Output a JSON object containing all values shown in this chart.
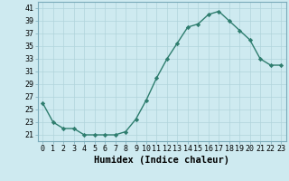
{
  "x": [
    0,
    1,
    2,
    3,
    4,
    5,
    6,
    7,
    8,
    9,
    10,
    11,
    12,
    13,
    14,
    15,
    16,
    17,
    18,
    19,
    20,
    21,
    22,
    23
  ],
  "y": [
    26,
    23,
    22,
    22,
    21,
    21,
    21,
    21,
    21.5,
    23.5,
    26.5,
    30,
    33,
    35.5,
    38,
    38.5,
    40,
    40.5,
    39,
    37.5,
    36,
    33,
    32,
    32
  ],
  "line_color": "#2e7d6e",
  "marker": "D",
  "marker_size": 2.2,
  "bg_color": "#ceeaf0",
  "grid_color": "#b0d4db",
  "xlabel": "Humidex (Indice chaleur)",
  "xlim": [
    -0.5,
    23.5
  ],
  "ylim": [
    20,
    42
  ],
  "yticks": [
    21,
    23,
    25,
    27,
    29,
    31,
    33,
    35,
    37,
    39,
    41
  ],
  "xticks": [
    0,
    1,
    2,
    3,
    4,
    5,
    6,
    7,
    8,
    9,
    10,
    11,
    12,
    13,
    14,
    15,
    16,
    17,
    18,
    19,
    20,
    21,
    22,
    23
  ],
  "xtick_labels": [
    "0",
    "1",
    "2",
    "3",
    "4",
    "5",
    "6",
    "7",
    "8",
    "9",
    "10",
    "11",
    "12",
    "13",
    "14",
    "15",
    "16",
    "17",
    "18",
    "19",
    "20",
    "21",
    "22",
    "23"
  ],
  "ytick_labels": [
    "21",
    "23",
    "25",
    "27",
    "29",
    "31",
    "33",
    "35",
    "37",
    "39",
    "41"
  ],
  "xlabel_fontsize": 7.5,
  "tick_fontsize": 6,
  "linewidth": 1.0
}
